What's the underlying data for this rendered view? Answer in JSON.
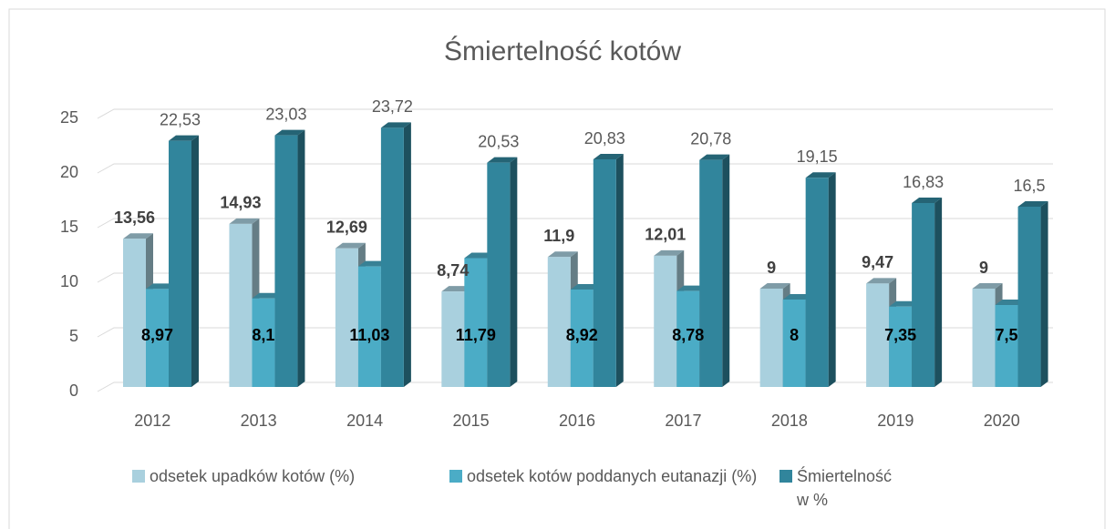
{
  "chart_data": {
    "type": "bar3d",
    "title": "Śmiertelność kotów",
    "categories": [
      "2012",
      "2013",
      "2014",
      "2015",
      "2016",
      "2017",
      "2018",
      "2019",
      "2020"
    ],
    "series": [
      {
        "name": "odsetek upadków kotów (%)",
        "color": "#a9d0de",
        "values": [
          13.56,
          14.93,
          12.69,
          8.74,
          11.9,
          12.01,
          9,
          9.47,
          9
        ],
        "value_labels": [
          "13,56",
          "14,93",
          "12,69",
          "8,74",
          "11,9",
          "12,01",
          "9",
          "9,47",
          "9"
        ]
      },
      {
        "name": "odsetek kotów poddanych eutanazji (%)",
        "color": "#4bacc6",
        "values": [
          8.97,
          8.1,
          11.03,
          11.79,
          8.92,
          8.78,
          8,
          7.35,
          7.5
        ],
        "value_labels": [
          "8,97",
          "8,1",
          "11,03",
          "11,79",
          "8,92",
          "8,78",
          "8",
          "7,35",
          "7,5"
        ]
      },
      {
        "name": "Śmiertelność w %",
        "color": "#31859c",
        "values": [
          22.53,
          23.03,
          23.72,
          20.53,
          20.83,
          20.78,
          19.15,
          16.83,
          16.5
        ],
        "value_labels": [
          "22,53",
          "23,03",
          "23,72",
          "20,53",
          "20,83",
          "20,78",
          "19,15",
          "16,83",
          "16,5"
        ]
      }
    ],
    "ylim": [
      0,
      25
    ],
    "yticks": [
      0,
      5,
      10,
      15,
      20,
      25
    ],
    "grid": true,
    "legend": "bottom"
  }
}
